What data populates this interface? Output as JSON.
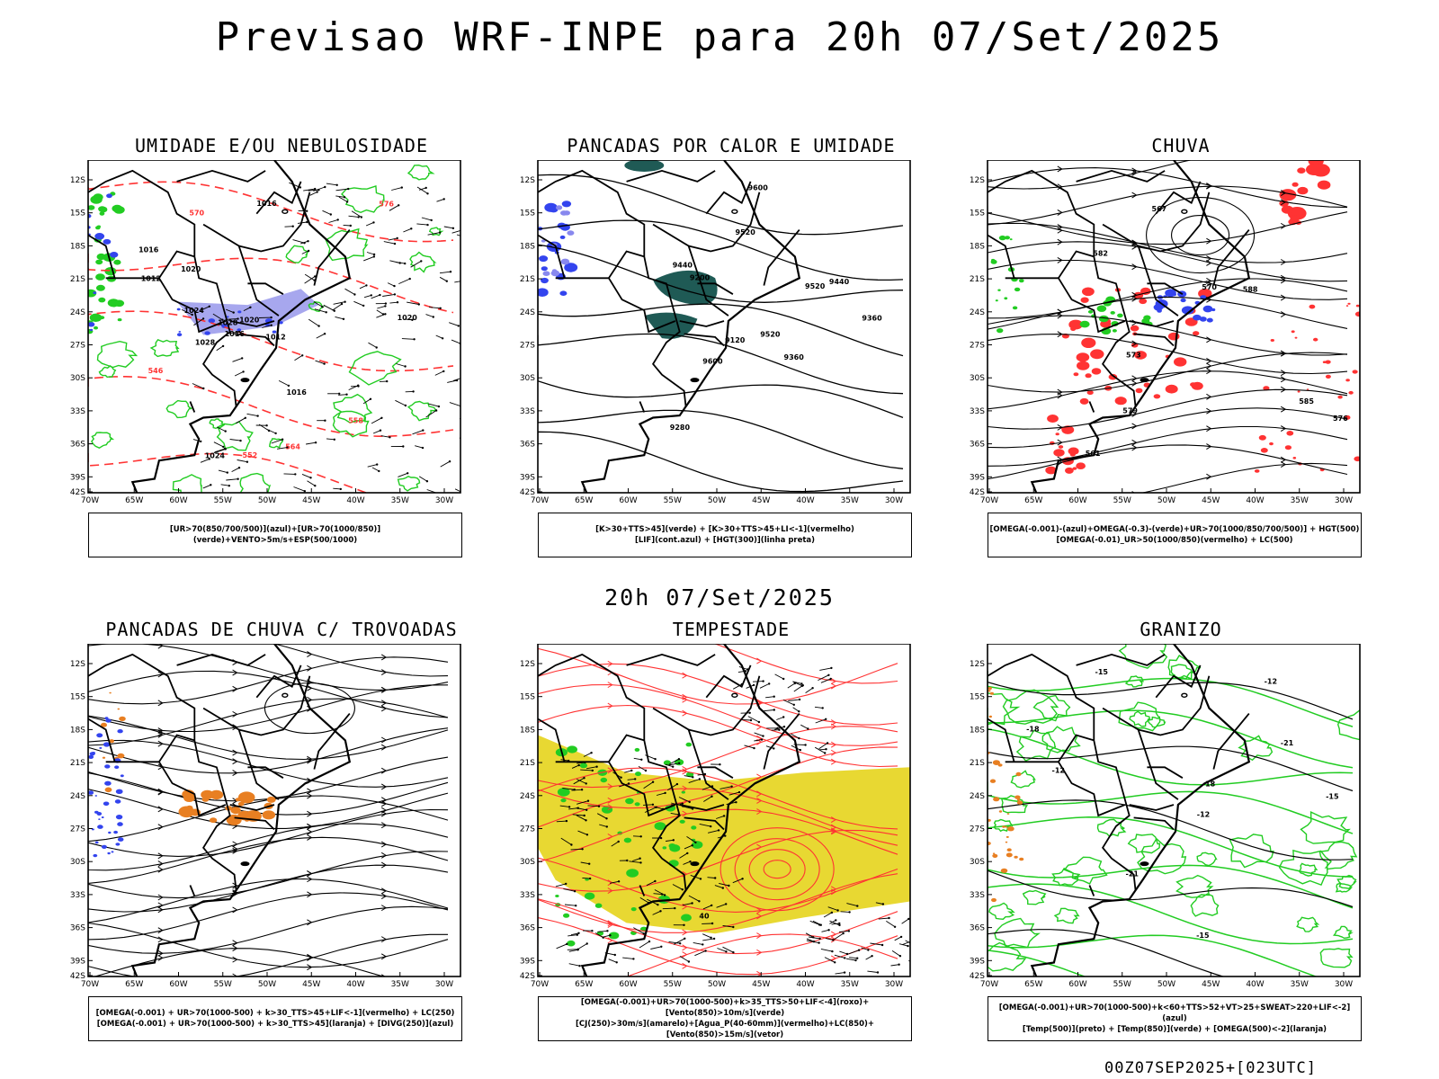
{
  "title": "Previsao WRF-INPE  para 20h 07/Set/2025",
  "mid_time": "20h 07/Set/2025",
  "footer": "00Z07SEP2025+[023UTC]",
  "axes": {
    "lat_ticks": [
      "12S",
      "15S",
      "18S",
      "21S",
      "24S",
      "27S",
      "30S",
      "33S",
      "36S",
      "39S",
      "42S"
    ],
    "lon_ticks": [
      "70W",
      "65W",
      "60W",
      "55W",
      "50W",
      "45W",
      "40W",
      "35W",
      "30W"
    ]
  },
  "colors": {
    "blue": "#3344ee",
    "lightblue": "#a7a7ee",
    "green": "#22cc22",
    "red": "#ff3333",
    "orange": "#e87f22",
    "yellow": "#e8d832",
    "darkteal": "#1f5a55"
  },
  "panels": [
    {
      "id": "umidade",
      "title": "UMIDADE E/OU NEBULOSIDADE",
      "legend": [
        "[UR>70(850/700/500)](azul)+[UR>70(1000/850)](verde)+VENTO>5m/s+ESP(500/1000)"
      ],
      "labels": [
        "1016",
        "1012",
        "1012",
        "1020",
        "1016",
        "1024",
        "1020",
        "1016",
        "1028",
        "1016",
        "1020",
        "1028",
        "1024",
        "570",
        "576",
        "564",
        "552",
        "546",
        "558"
      ]
    },
    {
      "id": "pancadas-calor",
      "title": "PANCADAS POR CALOR E UMIDADE",
      "legend": [
        "[K>30+TTS>45](verde) + [K>30+TTS>45+LI<-1](vermelho)",
        "[LIF](cont.azul) + [HGT(300)](linha preta)"
      ],
      "labels": [
        "9600",
        "9520",
        "9600",
        "9520",
        "9440",
        "9360",
        "9520",
        "9440",
        "9360",
        "9280",
        "9200",
        "9120"
      ]
    },
    {
      "id": "chuva",
      "title": "CHUVA",
      "legend": [
        "[OMEGA(-0.001)-(azul)+OMEGA(-0.3)-(verde)+UR>70(1000/850/700/500)] + HGT(500)",
        "[OMEGA(-0.01)_UR>50(1000/850)(vermelho) + LC(500)"
      ],
      "labels": [
        "585",
        "582",
        "579",
        "576",
        "573",
        "570",
        "567",
        "561",
        "588"
      ]
    },
    {
      "id": "pancadas-trovoadas",
      "title": "PANCADAS DE CHUVA C/ TROVOADAS",
      "legend": [
        "[OMEGA(-0.001) + UR>70(1000-500) + k>30_TTS>45+LIF<-1](vermelho) + LC(250)",
        "[OMEGA(-0.001) + UR>70(1000-500) + k>30_TTS>45](laranja) + [DIVG(250)](azul)"
      ],
      "labels": []
    },
    {
      "id": "tempestade",
      "title": "TEMPESTADE",
      "legend": [
        "[OMEGA(-0.001)+UR>70(1000-500)+k>35_TTS>50+LIF<-4](roxo)+[Vento(850)>10m/s](verde)",
        "[CJ(250)>30m/s](amarelo)+[Agua_P(40-60mm)](vermelho)+LC(850)+[Vento(850)>15m/s](vetor)"
      ],
      "labels": [
        "40"
      ]
    },
    {
      "id": "granizo",
      "title": "GRANIZO",
      "legend": [
        "[OMEGA(-0.001)+UR>70(1000-500)+k<60+TTS>52+VT>25+SWEAT>220+LIF<-2](azul)",
        "[Temp(500)](preto) + [Temp(850)](verde) + [OMEGA(500)<-2](laranja)"
      ],
      "labels": [
        "-12",
        "-15",
        "-12",
        "-15",
        "-18",
        "-21",
        "-21",
        "-18",
        "-15",
        "-12"
      ]
    }
  ]
}
